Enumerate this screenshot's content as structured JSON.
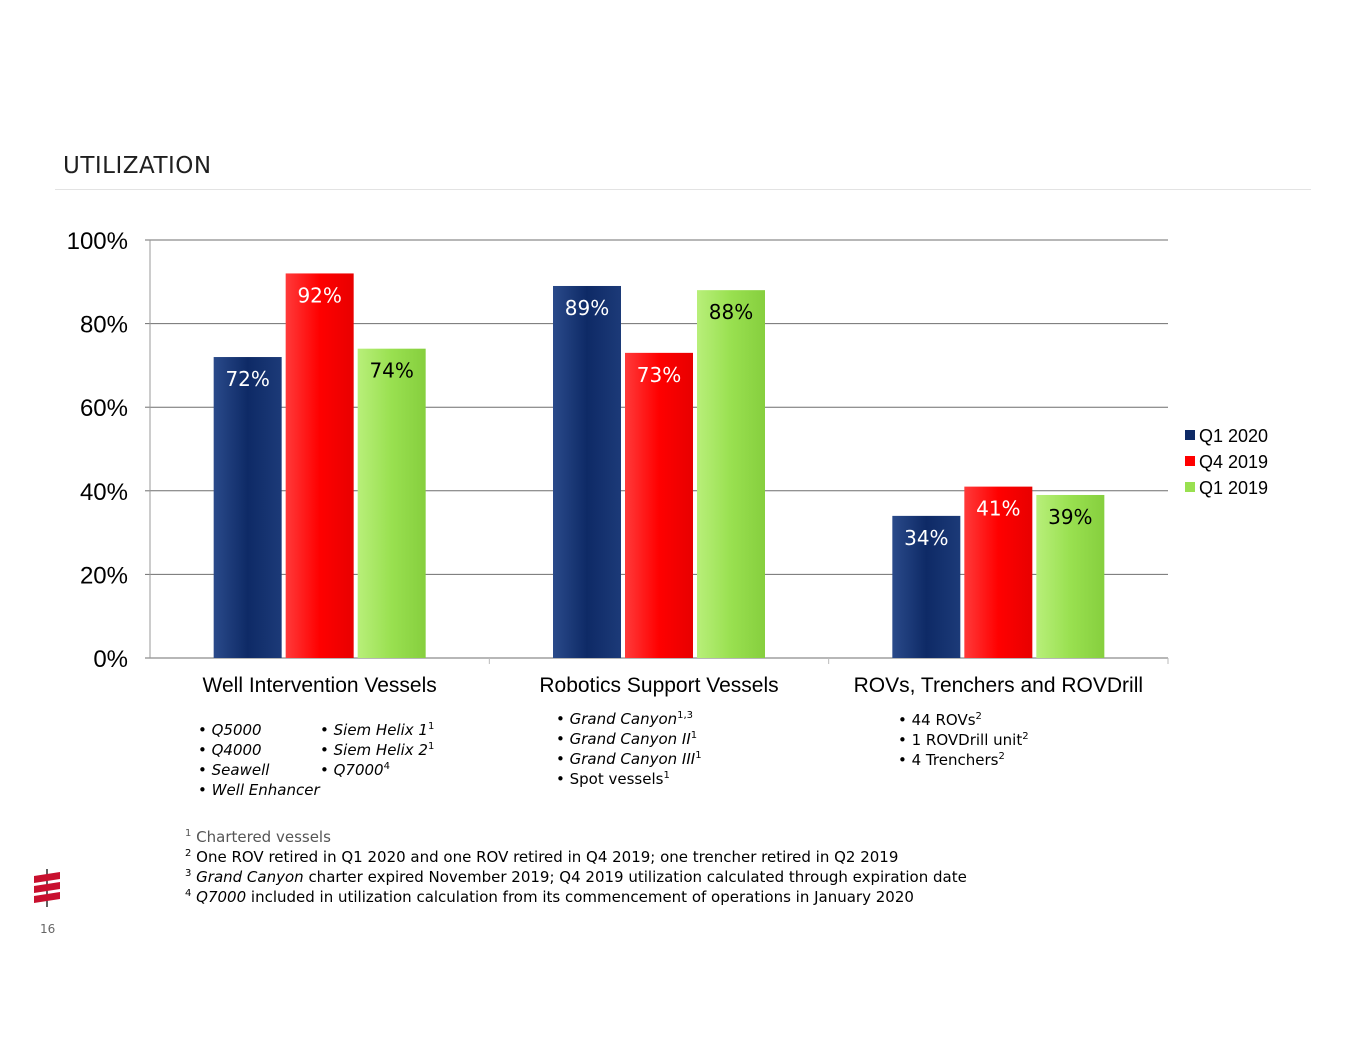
{
  "title": "UTILIZATION",
  "page_number": "16",
  "colors": {
    "q1_2020": "#0e2a66",
    "q4_2019": "#ff0000",
    "q1_2019": "#99e050"
  },
  "chart_data": {
    "type": "bar",
    "categories": [
      "Well Intervention Vessels",
      "Robotics Support Vessels",
      "ROVs, Trenchers and ROVDrill"
    ],
    "series": [
      {
        "name": "Q1 2020",
        "values": [
          72,
          89,
          34
        ],
        "labels": [
          "72%",
          "89%",
          "34%"
        ]
      },
      {
        "name": "Q4 2019",
        "values": [
          92,
          73,
          41
        ],
        "labels": [
          "92%",
          "73%",
          "41%"
        ]
      },
      {
        "name": "Q1 2019",
        "values": [
          74,
          88,
          39
        ],
        "labels": [
          "74%",
          "88%",
          "39%"
        ]
      }
    ],
    "y_ticks": [
      "0%",
      "20%",
      "40%",
      "60%",
      "80%",
      "100%"
    ],
    "ylim": [
      0,
      100
    ],
    "grid": true,
    "legend_position": "right"
  },
  "vessel_lists": {
    "well_intervention_col1": [
      "Q5000",
      "Q4000",
      "Seawell",
      "Well Enhancer"
    ],
    "well_intervention_col2": [
      {
        "name": "Siem Helix 1",
        "sup": "1"
      },
      {
        "name": "Siem Helix 2",
        "sup": "1"
      },
      {
        "name": "Q7000",
        "sup": "4"
      }
    ],
    "robotics": [
      {
        "name": "Grand Canyon",
        "sup": "1,3",
        "italic": true
      },
      {
        "name": "Grand Canyon II",
        "sup": "1",
        "italic": true
      },
      {
        "name": "Grand Canyon III",
        "sup": "1",
        "italic": true
      },
      {
        "name": "Spot vessels",
        "sup": "1",
        "italic": false
      }
    ],
    "rovs": [
      {
        "name": "44 ROVs",
        "sup": "2"
      },
      {
        "name": "1 ROVDrill unit",
        "sup": "2"
      },
      {
        "name": "4 Trenchers",
        "sup": "2"
      }
    ]
  },
  "footnotes": {
    "n1_num": "1",
    "n1_text": "Chartered vessels",
    "n2_num": "2",
    "n2_text": "One ROV retired in Q1 2020 and one ROV retired in Q4 2019; one trencher retired in Q2 2019",
    "n3_num": "3",
    "n3_italic": "Grand Canyon",
    "n3_text": " charter expired November 2019; Q4 2019 utilization calculated through expiration date",
    "n4_num": "4",
    "n4_italic": "Q7000",
    "n4_text": " included in utilization calculation from its commencement of operations in January 2020"
  }
}
